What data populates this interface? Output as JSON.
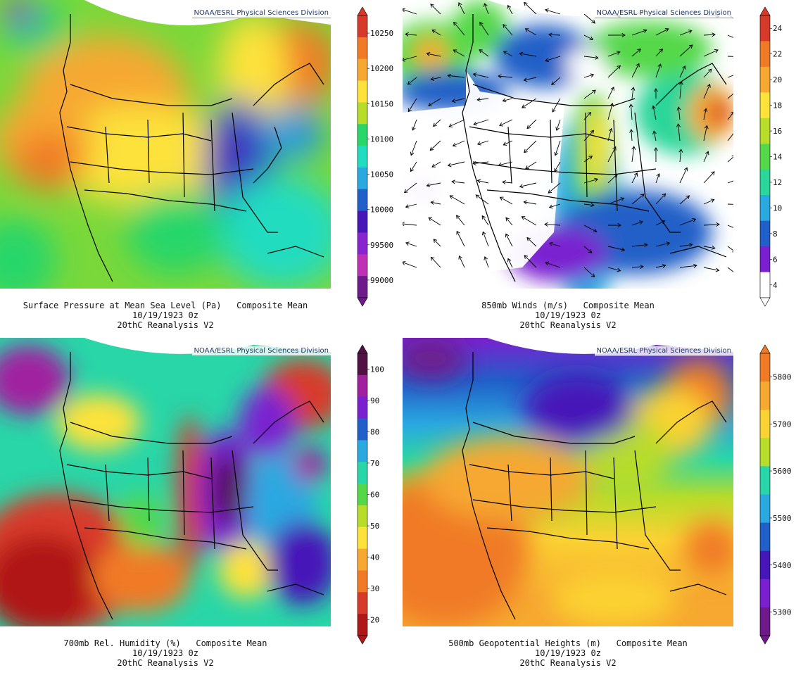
{
  "panels": [
    {
      "id": "slp",
      "credit": "NOAA/ESRL Physical Sciences Division",
      "title1": "Surface Pressure at Mean Sea Level (Pa)   Composite Mean",
      "title2": "10/19/1923 0z",
      "title3": "20thC Reanalysis V2",
      "colorbar": {
        "labels": [
          "10250",
          "10200",
          "10150",
          "10100",
          "10050",
          "10000",
          "99500",
          "99000"
        ],
        "colors": [
          "#d83a2a",
          "#f07a26",
          "#f6a830",
          "#fde23b",
          "#b7dc2a",
          "#28d66a",
          "#20dcc0",
          "#2aa8e0",
          "#2060c8",
          "#4616b8",
          "#8824d0",
          "#c030b4",
          "#6e1a8a"
        ]
      }
    },
    {
      "id": "winds",
      "credit": "NOAA/ESRL Physical Sciences Division",
      "title1": "850mb Winds (m/s)   Composite Mean",
      "title2": "10/19/1923 0z",
      "title3": "20thC Reanalysis V2",
      "colorbar": {
        "labels": [
          "24",
          "22",
          "20",
          "18",
          "16",
          "14",
          "12",
          "10",
          "8",
          "6",
          "4"
        ],
        "colors": [
          "#d83a2a",
          "#f07a26",
          "#f6a830",
          "#fde23b",
          "#b7dc2a",
          "#54d84a",
          "#2ad69a",
          "#2aa8e0",
          "#2060c8",
          "#7a20d0",
          "#ffffff"
        ]
      }
    },
    {
      "id": "rh",
      "credit": "NOAA/ESRL Physical Sciences Division",
      "title1": "700mb Rel. Humidity (%)   Composite Mean",
      "title2": "10/19/1923 0z",
      "title3": "20thC Reanalysis V2",
      "colorbar": {
        "labels": [
          "100",
          "90",
          "80",
          "70",
          "60",
          "50",
          "40",
          "30",
          "20"
        ],
        "colors": [
          "#521044",
          "#a020a0",
          "#7a20d0",
          "#2060c8",
          "#2aa8e0",
          "#28d6a8",
          "#54d84a",
          "#b7dc2a",
          "#fde23b",
          "#f6a830",
          "#f07a26",
          "#d83a2a",
          "#b01818"
        ]
      }
    },
    {
      "id": "hgt",
      "credit": "NOAA/ESRL Physical Sciences Division",
      "title1": "500mb Geopotential Heights (m)   Composite Mean",
      "title2": "10/19/1923 0z",
      "title3": "20thC Reanalysis V2",
      "colorbar": {
        "labels": [
          "5800",
          "5700",
          "5600",
          "5500",
          "5400",
          "5300"
        ],
        "colors": [
          "#f07a26",
          "#f6a830",
          "#fbd233",
          "#b7dc2a",
          "#28d6a8",
          "#2aa8e0",
          "#2060c8",
          "#4616b8",
          "#7a20d0",
          "#6e1a8a"
        ]
      }
    }
  ]
}
